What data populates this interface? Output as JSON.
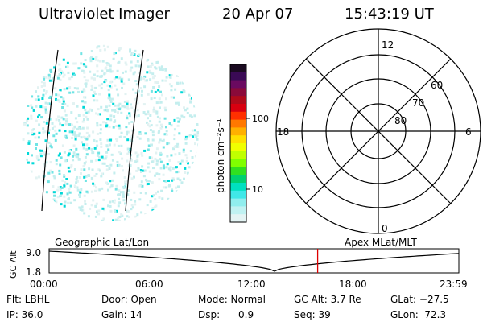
{
  "header": {
    "instrument": "Ultraviolet Imager",
    "date": "20 Apr 07",
    "time": "15:43:19 UT"
  },
  "colorbar": {
    "unit_label": "photon cm⁻²s⁻¹",
    "ticks": [
      "100",
      "10"
    ],
    "colors": [
      "#1a0a20",
      "#3a0a55",
      "#6a0a60",
      "#8a0a3a",
      "#b00a1a",
      "#d80010",
      "#ff3000",
      "#ff7800",
      "#ffb000",
      "#ffe000",
      "#f0ff00",
      "#c0ff00",
      "#80ff00",
      "#30e020",
      "#00d070",
      "#00e0c0",
      "#40e8e8",
      "#90eeee",
      "#c0f2f2",
      "#e4f4f4"
    ]
  },
  "polar": {
    "mlt_top": "12",
    "mlt_bottom": "0",
    "mlt_left": "18",
    "mlt_right": "6",
    "lat_labels": [
      "60",
      "70",
      "80"
    ]
  },
  "timeline": {
    "left_title": "Geographic Lat/Lon",
    "right_title": "Apex MLat/MLT",
    "ylabel": "GC Alt",
    "ytick_top": "9.0",
    "ytick_bottom": "1.8",
    "xticks": [
      "00:00",
      "06:00",
      "12:00",
      "18:00",
      "23:59"
    ],
    "current_time_marker": "15:43",
    "marker_color": "#dd0000"
  },
  "info": {
    "flt": "Flt: LBHL",
    "ip": "IP: 36.0",
    "door": "Door: Open",
    "gain": "Gain: 14",
    "mode": "Mode: Normal",
    "dsp": "Dsp:      0.9",
    "gcalt": "GC Alt: 3.7 Re",
    "seq": "Seq: 39",
    "glat": "GLat: −27.5",
    "glon": "GLon:  72.3"
  }
}
